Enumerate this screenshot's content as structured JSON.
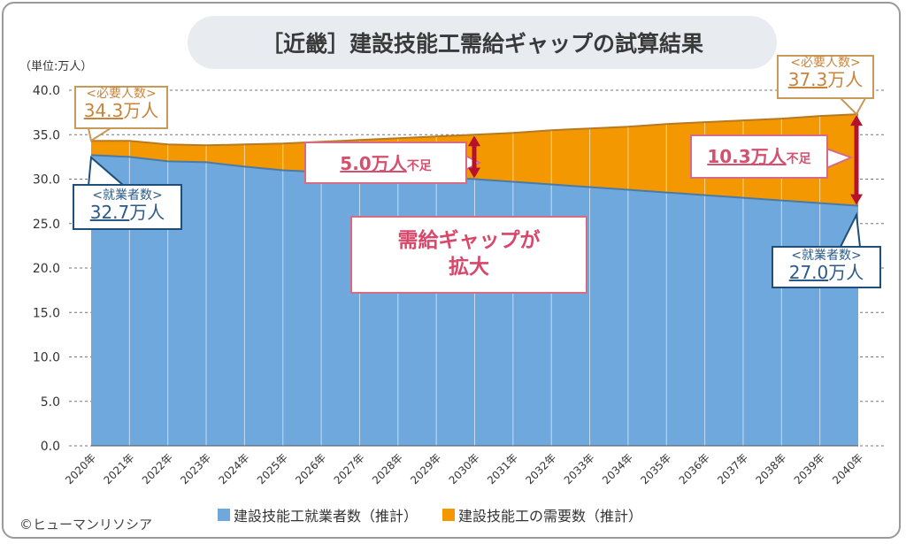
{
  "title": "［近畿］建設技能工需給ギャップの試算結果",
  "unit_label": "（単位:万人）",
  "copyright": "©ヒューマンリソシア",
  "colors": {
    "supply": "#6fa8dc",
    "demand": "#f39800",
    "arrow": "#b5122c"
  },
  "callouts": {
    "demand_2020": {
      "label": "<必要人数>",
      "value": "34.3",
      "unit": "万人"
    },
    "supply_2020": {
      "label": "<就業者数>",
      "value": "32.7",
      "unit": "万人"
    },
    "demand_2040": {
      "label": "<必要人数>",
      "value": "37.3",
      "unit": "万人"
    },
    "supply_2040": {
      "label": "<就業者数>",
      "value": "27.0",
      "unit": "万人"
    },
    "gap_2030": {
      "value": "5.0万人",
      "suffix": "不足"
    },
    "gap_2040": {
      "value": "10.3万人",
      "suffix": "不足"
    },
    "center_line1": "需給ギャップが",
    "center_line2": "拡大"
  },
  "chart_data": {
    "type": "area",
    "title": "［近畿］建設技能工需給ギャップの試算結果",
    "ylabel": "（単位:万人）",
    "ylim": [
      0,
      40
    ],
    "yticks": [
      "0.0",
      "5.0",
      "10.0",
      "15.0",
      "20.0",
      "25.0",
      "30.0",
      "35.0",
      "40.0"
    ],
    "categories": [
      "2020年",
      "2021年",
      "2022年",
      "2023年",
      "2024年",
      "2025年",
      "2026年",
      "2027年",
      "2028年",
      "2029年",
      "2030年",
      "2031年",
      "2032年",
      "2033年",
      "2034年",
      "2035年",
      "2036年",
      "2037年",
      "2038年",
      "2039年",
      "2040年"
    ],
    "series": [
      {
        "name": "建設技能工就業者数（推計）",
        "values": [
          32.7,
          32.5,
          32.0,
          31.9,
          31.4,
          31.0,
          30.8,
          30.6,
          30.4,
          30.2,
          30.0,
          29.7,
          29.4,
          29.1,
          28.8,
          28.5,
          28.2,
          27.9,
          27.6,
          27.3,
          27.0
        ]
      },
      {
        "name": "建設技能工の需要数（推計）",
        "values": [
          34.3,
          34.3,
          33.9,
          33.8,
          33.9,
          34.0,
          34.2,
          34.4,
          34.6,
          34.8,
          35.0,
          35.2,
          35.5,
          35.7,
          35.9,
          36.2,
          36.4,
          36.6,
          36.8,
          37.1,
          37.3
        ]
      }
    ],
    "grid": true,
    "legend": "bottom"
  }
}
